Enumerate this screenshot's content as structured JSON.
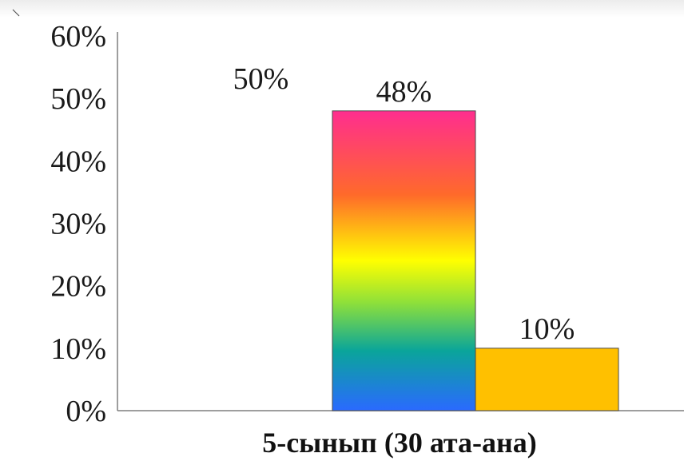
{
  "chart_data": {
    "type": "bar",
    "title": "",
    "xlabel": "5-сынып (30 ата-ана)",
    "ylabel": "",
    "ylim": [
      0,
      0.6
    ],
    "yticks": [
      "0%",
      "10%",
      "20%",
      "30%",
      "40%",
      "50%",
      "60%"
    ],
    "grid": false,
    "legend": "none",
    "categories": [
      "5-сынып (30 ата-ана)"
    ],
    "series": [
      {
        "values": [
          0.5
        ],
        "label": "50%",
        "color": "none"
      },
      {
        "values": [
          0.48
        ],
        "label": "48%",
        "color": "gradient-rainbow"
      },
      {
        "values": [
          0.1
        ],
        "label": "10%",
        "color": "#FFC000"
      }
    ]
  }
}
